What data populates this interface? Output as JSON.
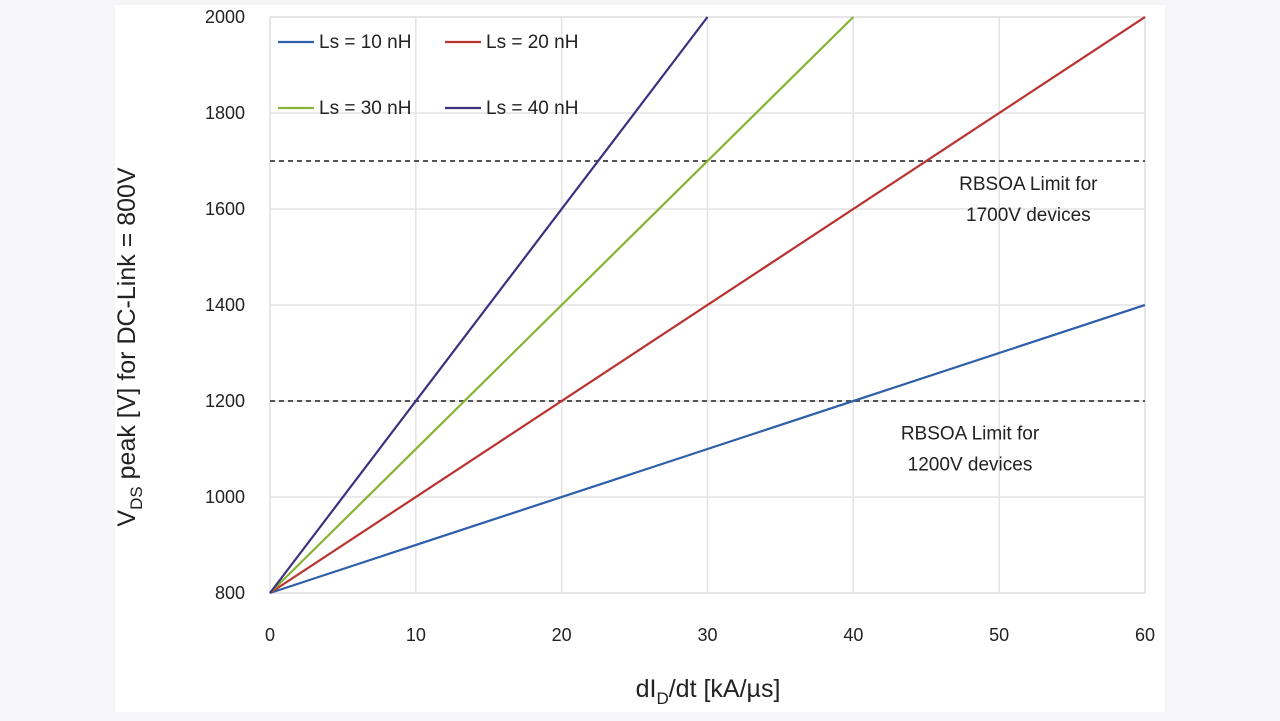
{
  "chart_data": {
    "type": "line",
    "title": "",
    "xlabel": "dI_D/dt [kA/µs]",
    "xlabel_parts": {
      "main1": "dI",
      "sub": "D",
      "main2": "/dt [kA/µs]"
    },
    "ylabel": "V_DS peak [V] for DC-Link = 800V",
    "ylabel_parts": {
      "main1": "V",
      "sub": "DS",
      "main2": " peak [V] for DC-Link = 800V"
    },
    "xlim": [
      0,
      60
    ],
    "ylim": [
      800,
      2000
    ],
    "x_ticks": [
      "0",
      "10",
      "20",
      "30",
      "40",
      "50",
      "60"
    ],
    "y_ticks": [
      "800",
      "1000",
      "1200",
      "1400",
      "1600",
      "1800",
      "2000"
    ],
    "grid": true,
    "legend_position": "top-left",
    "series": [
      {
        "name": "Ls = 10 nH",
        "color": "#2e5fa8",
        "x": [
          0,
          60
        ],
        "y": [
          800,
          1400
        ]
      },
      {
        "name": "Ls = 20 nH",
        "color": "#b8322f",
        "x": [
          0,
          60
        ],
        "y": [
          800,
          2000
        ]
      },
      {
        "name": "Ls = 30 nH",
        "color": "#86b332",
        "x": [
          0,
          40
        ],
        "y": [
          800,
          2000
        ]
      },
      {
        "name": "Ls = 40 nH",
        "color": "#3f2f7f",
        "x": [
          0,
          30
        ],
        "y": [
          800,
          2000
        ]
      }
    ],
    "reference_lines": [
      {
        "y": 1700,
        "style": "dashed",
        "color": "#555555"
      },
      {
        "y": 1200,
        "style": "dashed",
        "color": "#555555"
      }
    ],
    "annotations": [
      {
        "lines": [
          "RBSOA Limit for",
          "1700V devices"
        ],
        "x": 52,
        "y": 1640
      },
      {
        "lines": [
          "RBSOA Limit for",
          "1200V devices"
        ],
        "x": 48,
        "y": 1120
      }
    ]
  }
}
